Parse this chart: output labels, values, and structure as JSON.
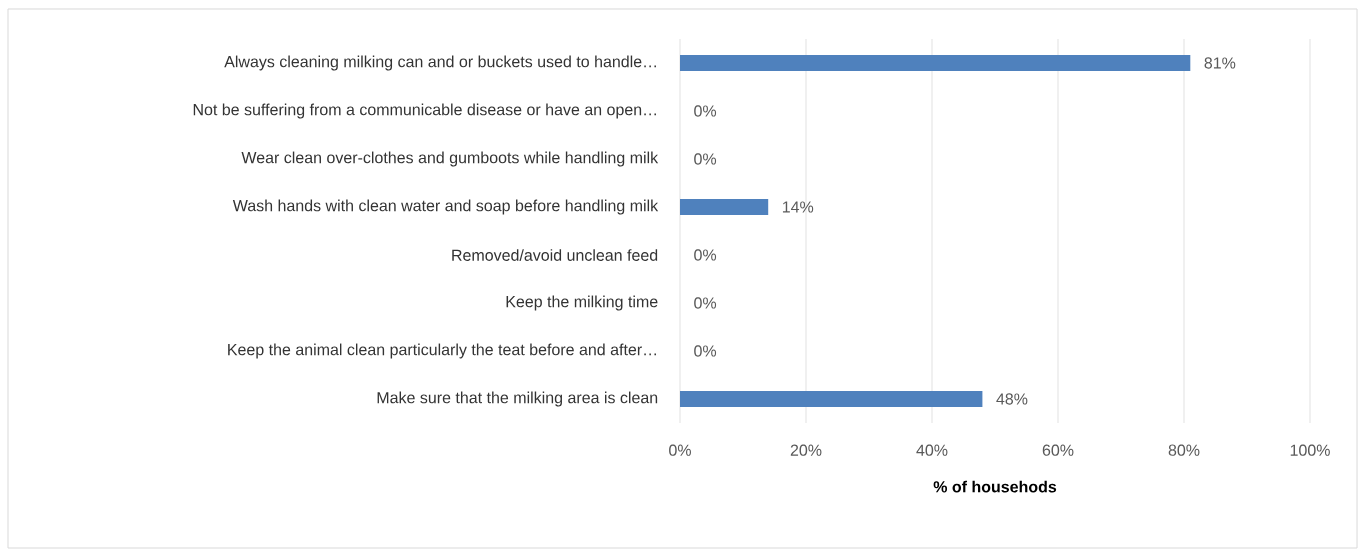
{
  "chart_data": {
    "type": "bar",
    "orientation": "horizontal",
    "xlabel": "% of househods",
    "categories": [
      "Always cleaning milking can and or buckets used to handle…",
      "Not be suffering from a communicable disease or have an open…",
      "Wear clean over-clothes and gumboots while handling milk",
      "Wash hands with clean water and soap before handling milk",
      "Removed/avoid unclean feed",
      "Keep the milking time",
      "Keep the animal clean particularly the teat before and after…",
      "Make sure that the milking area is clean"
    ],
    "values": [
      81,
      0,
      0,
      14,
      0,
      0,
      0,
      48
    ],
    "value_labels": [
      "81%",
      "0%",
      "0%",
      "14%",
      "0%",
      "0%",
      "0%",
      "48%"
    ],
    "color": "#4f81bd",
    "xlim": [
      0,
      100
    ],
    "xticks": [
      {
        "value": 0,
        "label": "0%"
      },
      {
        "value": 20,
        "label": "20%"
      },
      {
        "value": 40,
        "label": "40%"
      },
      {
        "value": 60,
        "label": "60%"
      },
      {
        "value": 80,
        "label": "80%"
      },
      {
        "value": 100,
        "label": "100%"
      }
    ],
    "grid": "x"
  }
}
